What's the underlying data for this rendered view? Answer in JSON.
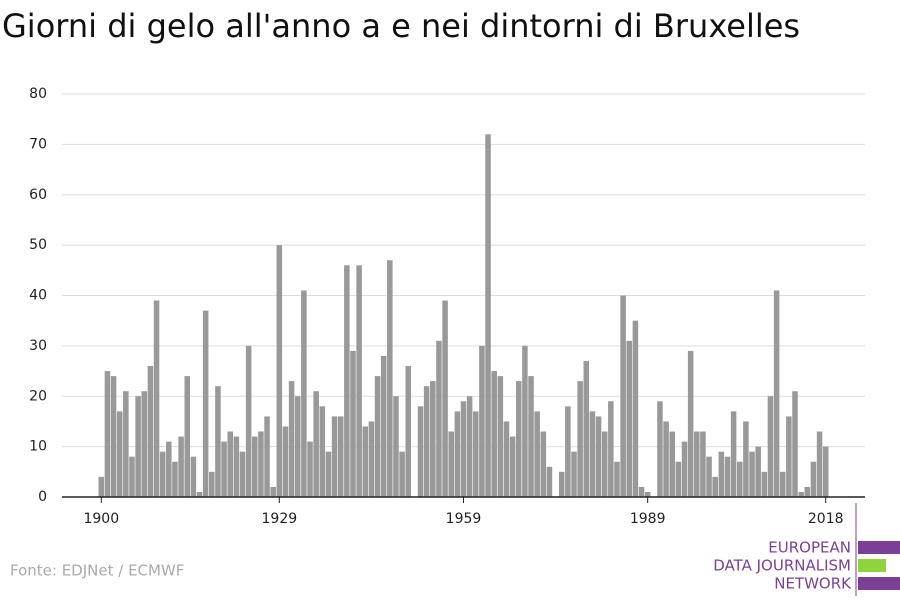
{
  "chart_data": {
    "type": "bar",
    "title": "Giorni di gelo all'anno a e nei dintorni di Bruxelles",
    "source": "Fonte: EDJNet / ECMWF",
    "logo": [
      "EUROPEAN",
      "DATA JOURNALISM",
      "NETWORK"
    ],
    "color": "#999999",
    "x": [
      1900,
      1901,
      1902,
      1903,
      1904,
      1905,
      1906,
      1907,
      1908,
      1909,
      1910,
      1911,
      1912,
      1913,
      1914,
      1915,
      1916,
      1917,
      1918,
      1919,
      1920,
      1921,
      1922,
      1923,
      1924,
      1925,
      1926,
      1927,
      1928,
      1929,
      1930,
      1931,
      1932,
      1933,
      1934,
      1935,
      1936,
      1937,
      1938,
      1939,
      1940,
      1941,
      1942,
      1943,
      1944,
      1945,
      1946,
      1947,
      1948,
      1949,
      1950,
      1951,
      1952,
      1953,
      1954,
      1955,
      1956,
      1957,
      1958,
      1959,
      1960,
      1961,
      1962,
      1963,
      1964,
      1965,
      1966,
      1967,
      1968,
      1969,
      1970,
      1971,
      1972,
      1973,
      1974,
      1975,
      1976,
      1977,
      1978,
      1979,
      1980,
      1981,
      1982,
      1983,
      1984,
      1985,
      1986,
      1987,
      1988,
      1989,
      1990,
      1991,
      1992,
      1993,
      1994,
      1995,
      1996,
      1997,
      1998,
      1999,
      2000,
      2001,
      2002,
      2003,
      2004,
      2005,
      2006,
      2007,
      2008,
      2009,
      2010,
      2011,
      2012,
      2013,
      2014,
      2015,
      2016,
      2017,
      2018
    ],
    "values": [
      4,
      25,
      24,
      17,
      21,
      8,
      20,
      21,
      26,
      39,
      9,
      11,
      7,
      12,
      24,
      8,
      1,
      37,
      5,
      22,
      11,
      13,
      12,
      9,
      30,
      12,
      13,
      16,
      2,
      50,
      14,
      23,
      20,
      41,
      11,
      21,
      18,
      9,
      16,
      16,
      46,
      29,
      46,
      14,
      15,
      24,
      28,
      47,
      20,
      9,
      26,
      0,
      18,
      22,
      23,
      31,
      39,
      13,
      17,
      19,
      20,
      17,
      30,
      72,
      25,
      24,
      15,
      12,
      23,
      30,
      24,
      17,
      13,
      6,
      0,
      5,
      18,
      9,
      23,
      27,
      17,
      16,
      13,
      19,
      7,
      40,
      31,
      35,
      2,
      1,
      0,
      19,
      15,
      13,
      7,
      11,
      29,
      13,
      13,
      8,
      4,
      9,
      8,
      17,
      7,
      15,
      9,
      10,
      5,
      20,
      41,
      5,
      16,
      21,
      1,
      2,
      7,
      13,
      10
    ],
    "xlim": [
      1893.6,
      2024.4
    ],
    "xticks": [
      1900,
      1929,
      1959,
      1989,
      2018
    ],
    "ylim": [
      0,
      80
    ],
    "yticks": [
      0,
      10,
      20,
      30,
      40,
      50,
      60,
      70,
      80
    ],
    "grid": true
  }
}
